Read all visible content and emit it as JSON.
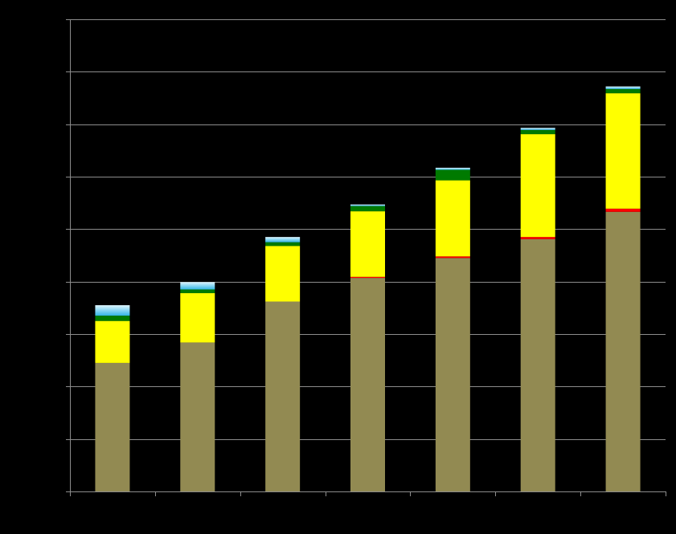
{
  "chart_data": {
    "type": "bar",
    "stacked": true,
    "title": "",
    "xlabel": "",
    "ylabel": "",
    "categories": [
      "",
      "",
      "",
      "",
      "",
      "",
      ""
    ],
    "ylim": [
      0,
      9
    ],
    "grid": true,
    "legend": "none",
    "series": [
      {
        "color": "#928A52",
        "values": [
          2.45,
          2.84,
          3.62,
          4.07,
          4.45,
          4.81,
          5.33
        ]
      },
      {
        "color": "#FF0000",
        "values": [
          0.0,
          0.0,
          0.0,
          0.02,
          0.03,
          0.04,
          0.06
        ]
      },
      {
        "color": "#FFFF00",
        "values": [
          0.8,
          0.94,
          1.06,
          1.25,
          1.45,
          1.96,
          2.2
        ]
      },
      {
        "color": "#007A00",
        "values": [
          0.1,
          0.07,
          0.07,
          0.1,
          0.2,
          0.08,
          0.08
        ]
      },
      {
        "color": "#87CEEB",
        "values": [
          0.2,
          0.14,
          0.1,
          0.03,
          0.04,
          0.04,
          0.05
        ]
      }
    ]
  }
}
